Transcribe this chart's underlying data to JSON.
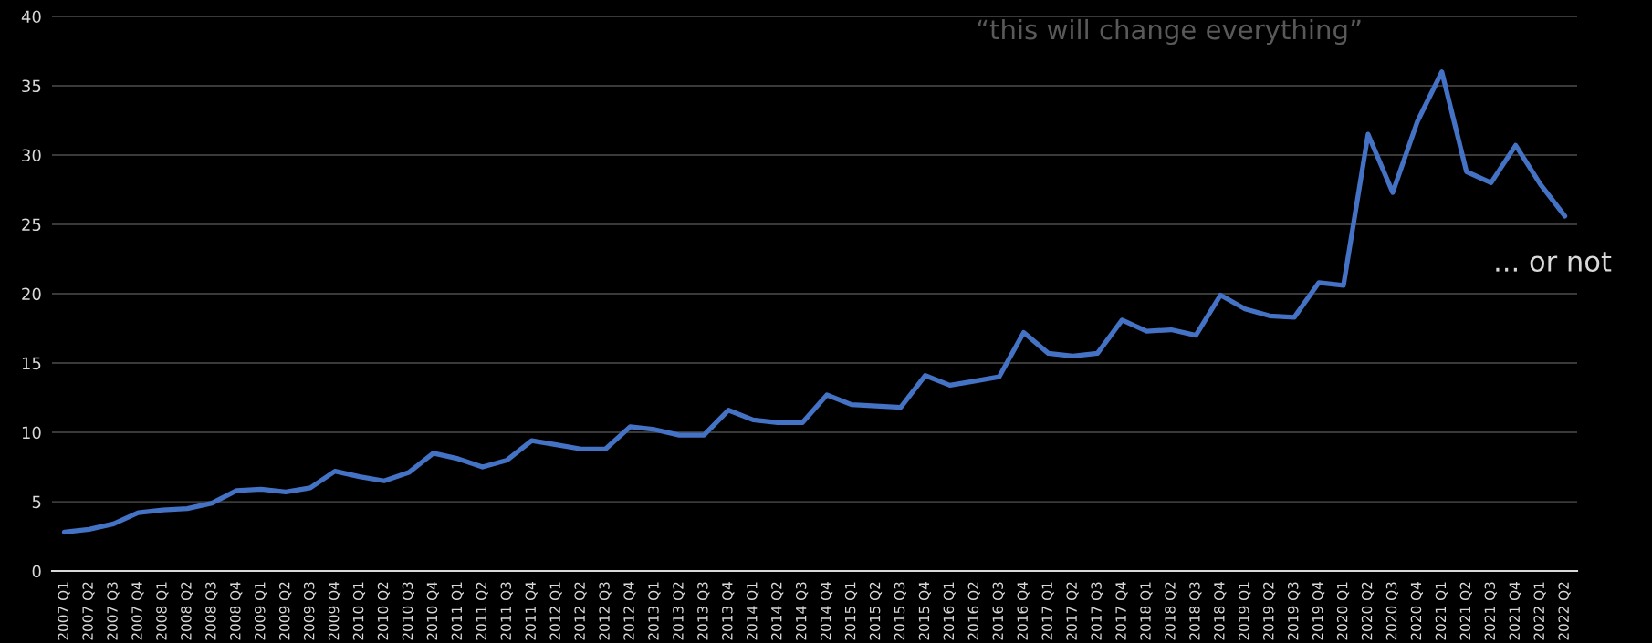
{
  "chart_data": {
    "type": "line",
    "categories": [
      "2007 Q1",
      "2007 Q2",
      "2007 Q3",
      "2007 Q4",
      "2008 Q1",
      "2008 Q2",
      "2008 Q3",
      "2008 Q4",
      "2009 Q1",
      "2009 Q2",
      "2009 Q3",
      "2009 Q4",
      "2010 Q1",
      "2010 Q2",
      "2010 Q3",
      "2010 Q4",
      "2011 Q1",
      "2011 Q2",
      "2011 Q3",
      "2011 Q4",
      "2012 Q1",
      "2012 Q2",
      "2012 Q3",
      "2012 Q4",
      "2013 Q1",
      "2013 Q2",
      "2013 Q3",
      "2013 Q4",
      "2014 Q1",
      "2014 Q2",
      "2014 Q3",
      "2014 Q4",
      "2015 Q1",
      "2015 Q2",
      "2015 Q3",
      "2015 Q4",
      "2016 Q1",
      "2016 Q2",
      "2016 Q3",
      "2016 Q4",
      "2017 Q1",
      "2017 Q2",
      "2017 Q3",
      "2017 Q4",
      "2018 Q1",
      "2018 Q2",
      "2018 Q3",
      "2018 Q4",
      "2019 Q1",
      "2019 Q2",
      "2019 Q3",
      "2019 Q4",
      "2020 Q1",
      "2020 Q2",
      "2020 Q3",
      "2020 Q4",
      "2021 Q1",
      "2021 Q2",
      "2021 Q3",
      "2021 Q4",
      "2022 Q1",
      "2022 Q2"
    ],
    "series": [
      {
        "color": "#4472c4",
        "values": [
          2.8,
          3.0,
          3.4,
          4.2,
          4.4,
          4.5,
          4.9,
          5.8,
          5.9,
          5.7,
          6.0,
          7.2,
          6.8,
          6.5,
          7.1,
          8.5,
          8.1,
          7.5,
          8.0,
          9.4,
          9.1,
          8.8,
          8.8,
          10.4,
          10.2,
          9.8,
          9.8,
          11.6,
          10.9,
          10.7,
          10.7,
          12.7,
          12.0,
          11.9,
          11.8,
          14.1,
          13.4,
          13.7,
          14.0,
          17.2,
          15.7,
          15.5,
          15.7,
          18.1,
          17.3,
          17.4,
          17.0,
          19.9,
          18.9,
          18.4,
          18.3,
          20.8,
          20.6,
          31.5,
          27.3,
          32.4,
          36.0,
          28.8,
          28.0,
          30.7,
          27.9,
          25.6
        ]
      }
    ],
    "ylim": [
      0,
      40
    ],
    "yticks": [
      0,
      5,
      10,
      15,
      20,
      25,
      30,
      35,
      40
    ],
    "grid": "y",
    "annotations": [
      "“this will change everything”",
      "... or not"
    ]
  }
}
